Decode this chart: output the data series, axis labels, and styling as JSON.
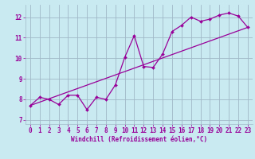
{
  "background_color": "#c8eaf0",
  "grid_color": "#a0b8c8",
  "line_color": "#990099",
  "marker_color": "#990099",
  "xlabel": "Windchill (Refroidissement éolien,°C)",
  "xlim": [
    -0.5,
    23.5
  ],
  "ylim": [
    6.8,
    12.6
  ],
  "yticks": [
    7,
    8,
    9,
    10,
    11,
    12
  ],
  "xticks": [
    0,
    1,
    2,
    3,
    4,
    5,
    6,
    7,
    8,
    9,
    10,
    11,
    12,
    13,
    14,
    15,
    16,
    17,
    18,
    19,
    20,
    21,
    22,
    23
  ],
  "line1_x": [
    0,
    1,
    2,
    3,
    4,
    5,
    6,
    7,
    8,
    9,
    10,
    11,
    12,
    13,
    14,
    15,
    16,
    17,
    18,
    19,
    20,
    21,
    22,
    23
  ],
  "line1_y": [
    7.7,
    8.1,
    8.0,
    7.75,
    8.2,
    8.2,
    7.5,
    8.1,
    8.0,
    8.7,
    10.05,
    11.1,
    9.6,
    9.55,
    10.2,
    11.3,
    11.6,
    12.0,
    11.8,
    11.9,
    12.1,
    12.2,
    12.05,
    11.5
  ],
  "line2_x": [
    0,
    23
  ],
  "line2_y": [
    7.7,
    11.5
  ],
  "xlabel_fontsize": 5.5,
  "tick_fontsize": 5.5
}
